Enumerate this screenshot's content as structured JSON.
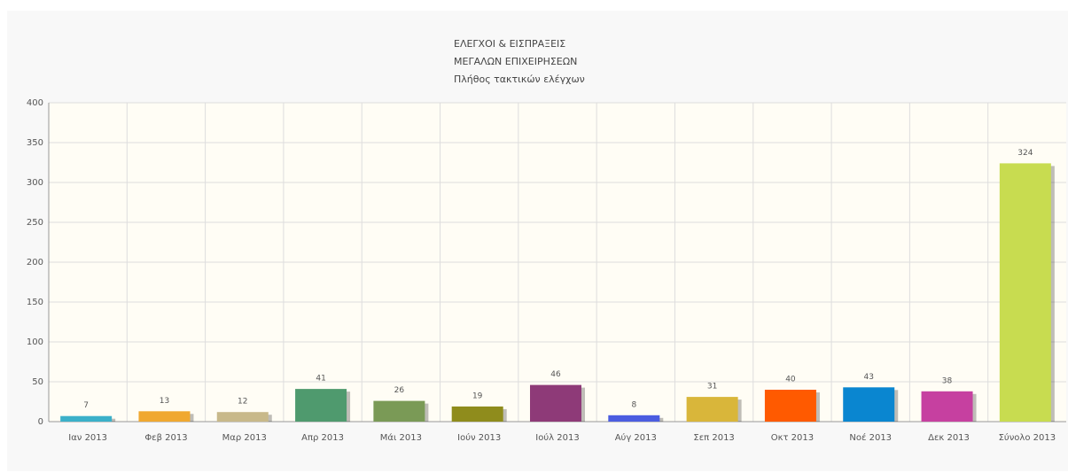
{
  "chart_data": {
    "type": "bar",
    "title": "ΕΛΕΓΧΟΙ & ΕΙΣΠΡΑΞΕΙΣ",
    "subtitle": "ΜΕΓΑΛΩΝ ΕΠΙΧΕΙΡΗΣΕΩΝ",
    "y_label": "Πλήθος τακτικών ελέγχων",
    "categories": [
      "Ιαν 2013",
      "Φεβ 2013",
      "Μαρ 2013",
      "Απρ 2013",
      "Μάι 2013",
      "Ιούν 2013",
      "Ιούλ 2013",
      "Αύγ 2013",
      "Σεπ 2013",
      "Οκτ 2013",
      "Νοέ 2013",
      "Δεκ 2013",
      "Σύνολο 2013"
    ],
    "values": [
      7,
      13,
      12,
      41,
      26,
      19,
      46,
      8,
      31,
      40,
      43,
      38,
      324
    ],
    "colors": [
      "#3bb0c9",
      "#f0a830",
      "#c8b98a",
      "#4f9a6e",
      "#7a9a56",
      "#8f8c1c",
      "#8e3a78",
      "#4b5de0",
      "#d9b63a",
      "#ff5a00",
      "#0a86d0",
      "#c640a0",
      "#c8dc50"
    ],
    "ylim": [
      0,
      400
    ],
    "yticks": [
      0,
      50,
      100,
      150,
      200,
      250,
      300,
      350,
      400
    ],
    "grid": true
  }
}
